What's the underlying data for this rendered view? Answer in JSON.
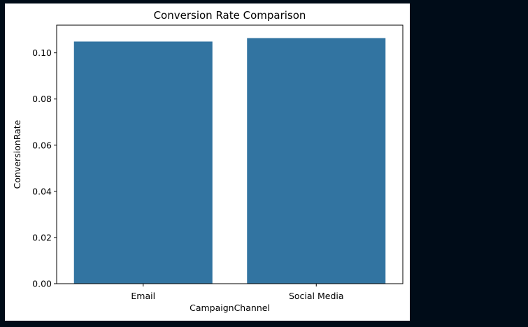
{
  "chart_data": {
    "type": "bar",
    "title": "Conversion Rate Comparison",
    "xlabel": "CampaignChannel",
    "ylabel": "ConversionRate",
    "categories": [
      "Email",
      "Social Media"
    ],
    "values": [
      0.1049,
      0.1064
    ],
    "ylim": [
      0,
      0.112
    ],
    "yticks": [
      0.0,
      0.02,
      0.04,
      0.06,
      0.08,
      0.1
    ],
    "ytick_labels": [
      "0.00",
      "0.02",
      "0.04",
      "0.06",
      "0.08",
      "0.10"
    ],
    "bar_color": "#3274a1",
    "grid": false,
    "legend": "none"
  }
}
